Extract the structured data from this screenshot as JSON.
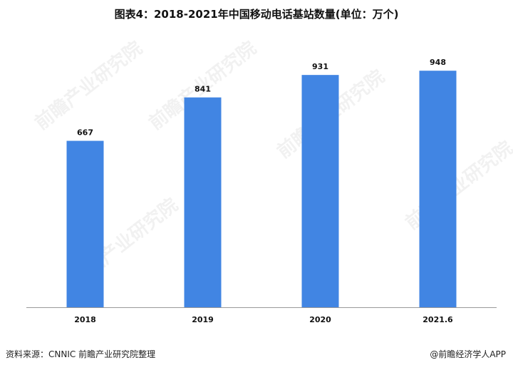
{
  "title": "图表4：2018-2021年中国移动电话基站数量(单位：万个)",
  "footer": {
    "source": "资料来源：CNNIC 前瞻产业研究院整理",
    "credit": "@前瞻经济学人APP"
  },
  "watermark": "前瞻产业研究院",
  "colors": {
    "bar": "#4185e3",
    "axis": "#999999"
  },
  "chart_data": {
    "type": "bar",
    "title": "图表4：2018-2021年中国移动电话基站数量(单位：万个)",
    "categories": [
      "2018",
      "2019",
      "2020",
      "2021.6"
    ],
    "values": [
      667,
      841,
      931,
      948
    ],
    "xlabel": "",
    "ylabel": "",
    "ylim": [
      0,
      1050
    ],
    "grid": false,
    "legend": "none"
  }
}
